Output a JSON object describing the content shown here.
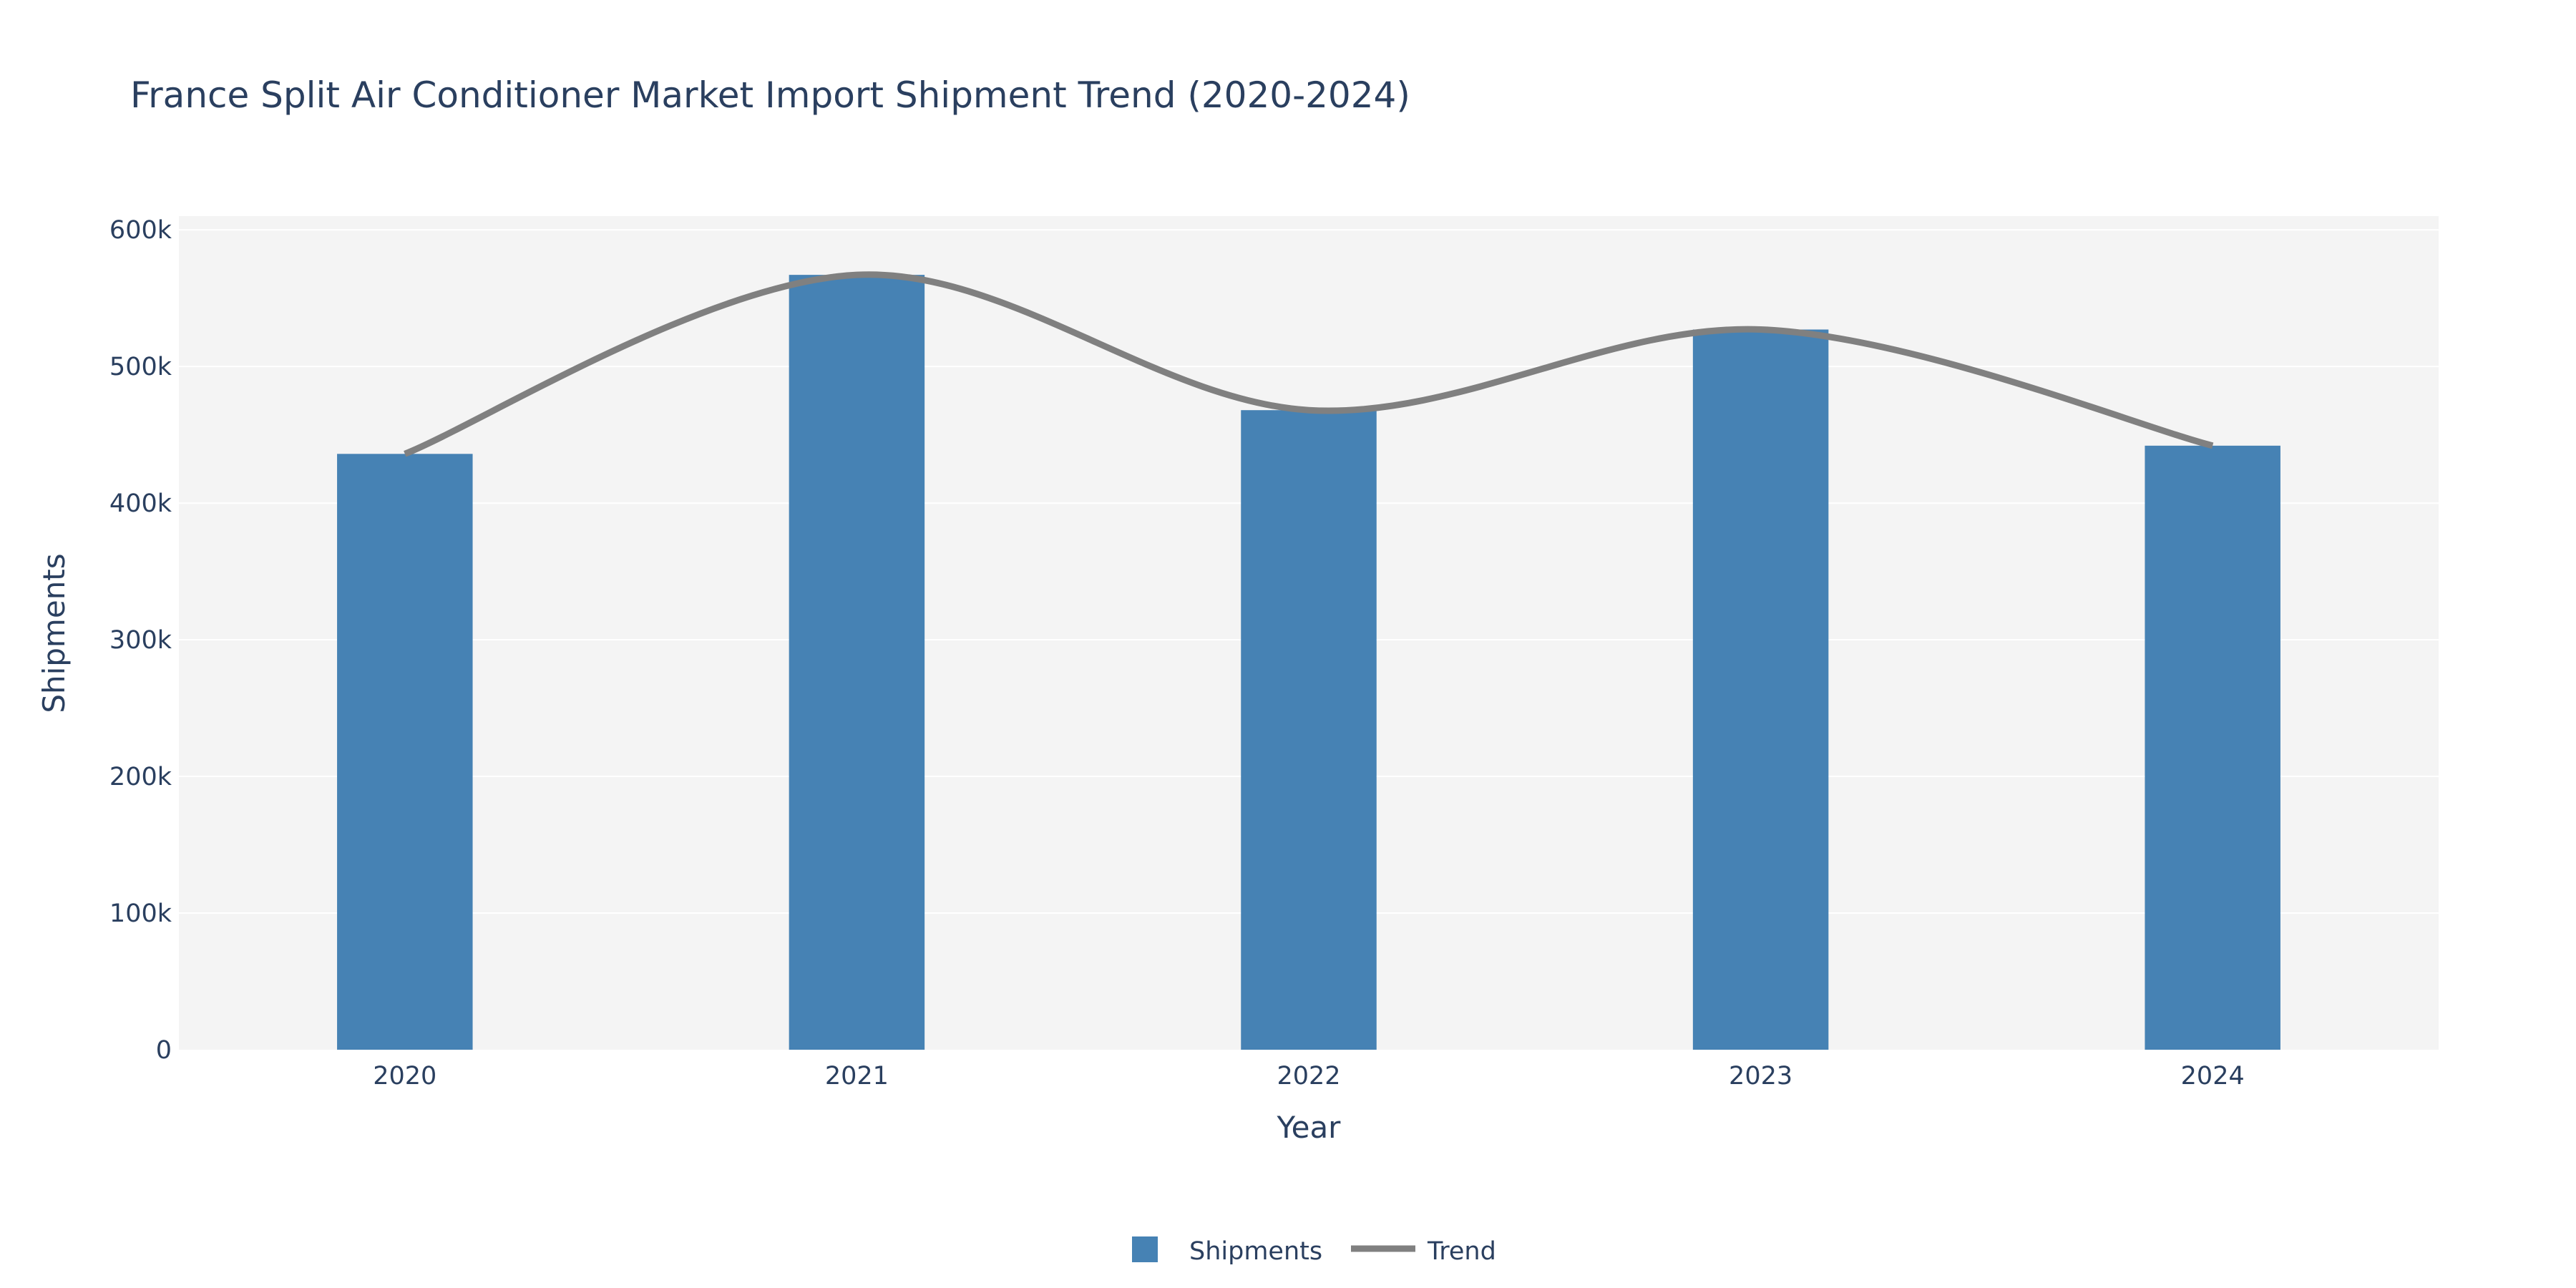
{
  "chart_data": {
    "type": "bar",
    "title": "France Split Air Conditioner Market Import Shipment Trend (2020-2024)",
    "xlabel": "Year",
    "ylabel": "Shipments",
    "categories": [
      "2020",
      "2021",
      "2022",
      "2023",
      "2024"
    ],
    "ylim": [
      0,
      610000
    ],
    "yticks": [
      0,
      100000,
      200000,
      300000,
      400000,
      500000,
      600000
    ],
    "ytick_labels": [
      "0",
      "100k",
      "200k",
      "300k",
      "400k",
      "500k",
      "600k"
    ],
    "grid": true,
    "legend_position": "bottom-center",
    "series": [
      {
        "name": "Shipments",
        "type": "bar",
        "color": "#4682b4",
        "values": [
          436000,
          567000,
          468000,
          527000,
          442000
        ]
      },
      {
        "name": "Trend",
        "type": "line",
        "smooth": true,
        "color": "#808080",
        "values": [
          436000,
          567000,
          468000,
          527000,
          442000
        ]
      }
    ]
  },
  "colors": {
    "plot_background": "#f4f4f4",
    "gridline": "#ffffff",
    "text": "#2a3f5f"
  }
}
